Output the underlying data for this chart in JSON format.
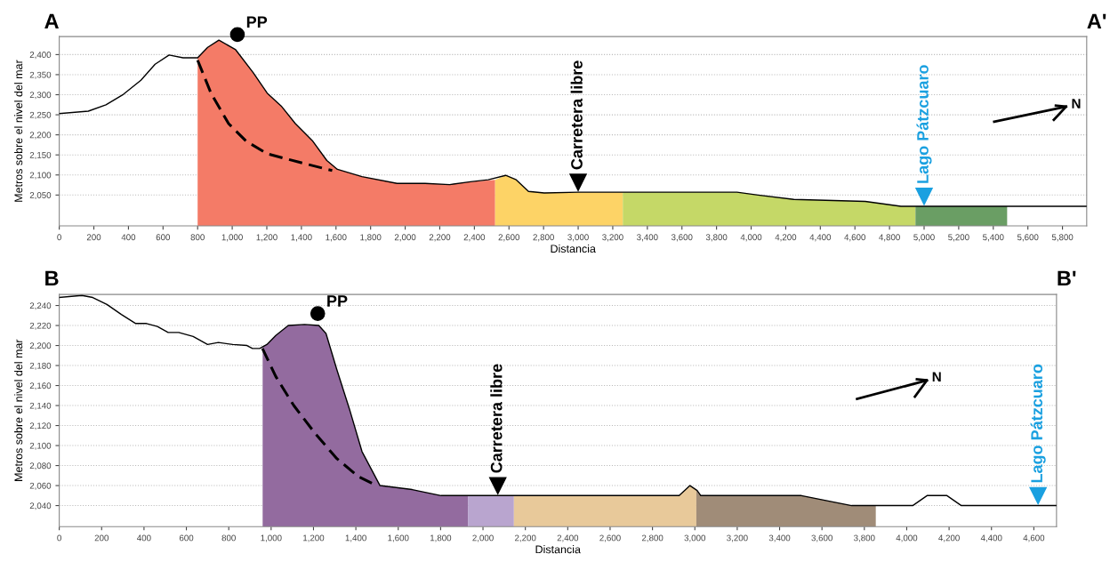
{
  "chart_data": [
    {
      "type": "line",
      "xlabel": "Distancia",
      "ylabel": "Metros sobre el nivel del mar",
      "grid": "y",
      "xlim": [
        0,
        5940
      ],
      "ylim": [
        1973,
        2445
      ],
      "xticks": [
        0,
        {
          "value": 200,
          "label": "200"
        },
        {
          "value": 400,
          "label": "400"
        },
        {
          "value": 600,
          "label": "600"
        },
        {
          "value": 800,
          "label": "800"
        },
        {
          "value": 1000,
          "label": "1,000"
        },
        {
          "value": 1200,
          "label": "1,200"
        },
        {
          "value": 1400,
          "label": "1,400"
        },
        {
          "value": 1600,
          "label": "1,600"
        },
        {
          "value": 1800,
          "label": "1,800"
        },
        {
          "value": 2000,
          "label": "2,000"
        },
        {
          "value": 2200,
          "label": "2,200"
        },
        {
          "value": 2400,
          "label": "2,400"
        },
        {
          "value": 2600,
          "label": "2,600"
        },
        {
          "value": 2800,
          "label": "2,800"
        },
        {
          "value": 3000,
          "label": "3,000"
        },
        {
          "value": 3200,
          "label": "3,200"
        },
        {
          "value": 3400,
          "label": "3,400"
        },
        {
          "value": 3600,
          "label": "3,600"
        },
        {
          "value": 3800,
          "label": "3,800"
        },
        {
          "value": 4000,
          "label": "4,000"
        },
        {
          "value": 4200,
          "label": "4,200"
        },
        {
          "value": 4400,
          "label": "4,400"
        },
        {
          "value": 4600,
          "label": "4,600"
        },
        {
          "value": 4800,
          "label": "4,800"
        },
        {
          "value": 5000,
          "label": "5,000"
        },
        {
          "value": 5200,
          "label": "5,200"
        },
        {
          "value": 5400,
          "label": "5,400"
        },
        {
          "value": 5600,
          "label": "5,600"
        },
        {
          "value": 5800,
          "label": "5,800"
        }
      ],
      "yticks": [
        {
          "value": 2050,
          "label": "2,050"
        },
        {
          "value": 2100,
          "label": "2,100"
        },
        {
          "value": 2150,
          "label": "2,150"
        },
        {
          "value": 2200,
          "label": "2,200"
        },
        {
          "value": 2250,
          "label": "2,250"
        },
        {
          "value": 2300,
          "label": "2,300"
        },
        {
          "value": 2350,
          "label": "2,350"
        },
        {
          "value": 2400,
          "label": "2,400"
        }
      ],
      "series": [
        {
          "type": "area",
          "color": "#f47b67",
          "x": [
            800,
            858,
            923,
            1020,
            1121,
            1202,
            1283,
            1365,
            1466,
            1547,
            1608,
            1750,
            1953,
            2115,
            2257,
            2378,
            2520
          ],
          "values": [
            2392,
            2418,
            2436,
            2412,
            2355,
            2304,
            2272,
            2228,
            2184,
            2136,
            2114,
            2096,
            2079,
            2079,
            2076,
            2083,
            2088
          ]
        },
        {
          "type": "area",
          "color": "#fdd366",
          "x": [
            2520,
            2581,
            2642,
            2713,
            2804,
            3000,
            3258
          ],
          "values": [
            2088,
            2099,
            2088,
            2059,
            2055,
            2057,
            2057
          ]
        },
        {
          "type": "area",
          "color": "#c5d867",
          "x": [
            3258,
            3629,
            3918,
            4041,
            4247,
            4660,
            4866,
            4950
          ],
          "values": [
            2057,
            2057,
            2057,
            2050,
            2039,
            2034,
            2022,
            2022
          ]
        },
        {
          "type": "area",
          "color": "#6a9e64",
          "x": [
            4950,
            5480
          ],
          "values": [
            2022,
            2022
          ]
        },
        {
          "color": "#000000",
          "x": [
            0,
            168,
            270,
            371,
            472,
            554,
            635,
            716,
            800,
            858,
            923,
            1020,
            1121,
            1202,
            1283,
            1365,
            1466,
            1547,
            1608,
            1750,
            1953,
            2115,
            2257,
            2378,
            2480,
            2581,
            2642,
            2713,
            2804,
            3000,
            3258,
            3629,
            3918,
            4041,
            4247,
            4660,
            4866,
            5940
          ],
          "values": [
            2253,
            2259,
            2275,
            2301,
            2336,
            2376,
            2399,
            2392,
            2392,
            2418,
            2436,
            2412,
            2355,
            2304,
            2272,
            2228,
            2184,
            2136,
            2114,
            2096,
            2079,
            2079,
            2076,
            2083,
            2088,
            2099,
            2088,
            2059,
            2055,
            2057,
            2057,
            2057,
            2057,
            2050,
            2039,
            2034,
            2022,
            2022
          ]
        },
        {
          "color": "#000000",
          "line_style": "dashed",
          "x": [
            800,
            878,
            979,
            1081,
            1202,
            1385,
            1578
          ],
          "values": [
            2386,
            2303,
            2228,
            2184,
            2153,
            2132,
            2111
          ]
        }
      ],
      "annotations": [
        "A",
        "A'",
        "N",
        {
          "text": "PP",
          "x": 1030,
          "y": 2450
        },
        {
          "text": "Carretera libre",
          "x": 3000,
          "y": 2057
        },
        {
          "text": "Lago Pátzcuaro",
          "x": 5000,
          "y": 2022
        }
      ]
    },
    {
      "type": "line",
      "xlabel": "Distancia",
      "ylabel": "Metros sobre el nivel del mar",
      "grid": "y",
      "xlim": [
        0,
        4707
      ],
      "ylim": [
        2019,
        2251
      ],
      "xticks": [
        0,
        {
          "value": 200,
          "label": "200"
        },
        {
          "value": 400,
          "label": "400"
        },
        {
          "value": 600,
          "label": "600"
        },
        {
          "value": 800,
          "label": "800"
        },
        {
          "value": 1000,
          "label": "1,000"
        },
        {
          "value": 1200,
          "label": "1,200"
        },
        {
          "value": 1400,
          "label": "1,400"
        },
        {
          "value": 1600,
          "label": "1,600"
        },
        {
          "value": 1800,
          "label": "1,800"
        },
        {
          "value": 2000,
          "label": "2,000"
        },
        {
          "value": 2200,
          "label": "2,200"
        },
        {
          "value": 2400,
          "label": "2,400"
        },
        {
          "value": 2600,
          "label": "2,600"
        },
        {
          "value": 2800,
          "label": "2,800"
        },
        {
          "value": 3000,
          "label": "3,000"
        },
        {
          "value": 3200,
          "label": "3,200"
        },
        {
          "value": 3400,
          "label": "3,400"
        },
        {
          "value": 3600,
          "label": "3,600"
        },
        {
          "value": 3800,
          "label": "3,800"
        },
        {
          "value": 4000,
          "label": "4,000"
        },
        {
          "value": 4200,
          "label": "4,200"
        },
        {
          "value": 4400,
          "label": "4,400"
        },
        {
          "value": 4600,
          "label": "4,600"
        }
      ],
      "yticks": [
        {
          "value": 2040,
          "label": "2,040"
        },
        {
          "value": 2060,
          "label": "2,060"
        },
        {
          "value": 2080,
          "label": "2,080"
        },
        {
          "value": 2100,
          "label": "2,100"
        },
        {
          "value": 2120,
          "label": "2,120"
        },
        {
          "value": 2140,
          "label": "2,140"
        },
        {
          "value": 2160,
          "label": "2,160"
        },
        {
          "value": 2180,
          "label": "2,180"
        },
        {
          "value": 2200,
          "label": "2,200"
        },
        {
          "value": 2220,
          "label": "2,220"
        },
        {
          "value": 2240,
          "label": "2,240"
        }
      ],
      "series": [
        {
          "type": "area",
          "color": "#936b9f",
          "x": [
            960,
            980,
            1022,
            1081,
            1158,
            1225,
            1259,
            1310,
            1369,
            1429,
            1514,
            1666,
            1802,
            1929
          ],
          "values": [
            2199,
            2201,
            2210,
            2220,
            2221,
            2220,
            2212,
            2176,
            2137,
            2094,
            2060,
            2056,
            2050,
            2050
          ]
        },
        {
          "type": "area",
          "color": "#b9a5cf",
          "x": [
            1929,
            2146
          ],
          "values": [
            2050,
            2050
          ]
        },
        {
          "type": "area",
          "color": "#e8c99a",
          "x": [
            2146,
            2298,
            2926,
            2977,
            3007
          ],
          "values": [
            2050,
            2050,
            2050,
            2060,
            2056
          ]
        },
        {
          "type": "area",
          "color": "#a08c78",
          "x": [
            3007,
            3028,
            3503,
            3740,
            3854
          ],
          "values": [
            2056,
            2050,
            2050,
            2040,
            2040
          ]
        },
        {
          "color": "#000000",
          "x": [
            0,
            107,
            158,
            225,
            293,
            361,
            412,
            463,
            514,
            564,
            632,
            700,
            751,
            819,
            886,
            912,
            946,
            980,
            1022,
            1081,
            1158,
            1225,
            1259,
            1310,
            1369,
            1429,
            1514,
            1666,
            1802,
            2298,
            2926,
            2977,
            3011,
            3028,
            3503,
            3740,
            4028,
            4096,
            4190,
            4258,
            4707
          ],
          "values": [
            2248,
            2250,
            2248,
            2241,
            2231,
            2222,
            2222,
            2219,
            2213,
            2213,
            2209,
            2201,
            2203,
            2201,
            2200,
            2197,
            2197,
            2201,
            2210,
            2220,
            2221,
            2220,
            2212,
            2176,
            2137,
            2094,
            2060,
            2056,
            2050,
            2050,
            2050,
            2060,
            2055,
            2050,
            2050,
            2040,
            2040,
            2050,
            2050,
            2040,
            2040
          ]
        },
        {
          "color": "#000000",
          "line_style": "dashed",
          "x": [
            959,
            1022,
            1107,
            1208,
            1310,
            1412,
            1488
          ],
          "values": [
            2197,
            2169,
            2140,
            2112,
            2087,
            2069,
            2061
          ]
        }
      ],
      "annotations": [
        "B",
        "B'",
        "N",
        {
          "text": "PP",
          "x": 1220,
          "y": 2232
        },
        {
          "text": "Carretera libre",
          "x": 2070,
          "y": 2050
        },
        {
          "text": "Lago Pátzcuaro",
          "x": 4620,
          "y": 2040
        }
      ]
    }
  ]
}
